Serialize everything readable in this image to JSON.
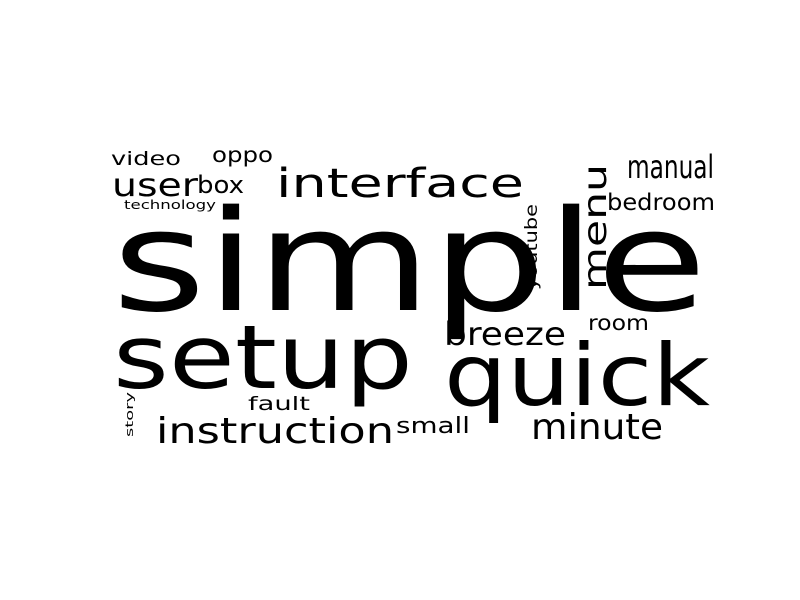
{
  "wordcloud": {
    "background": "#ffffff",
    "color": "#000000",
    "words": [
      {
        "text": "simple",
        "weight": 100
      },
      {
        "text": "setup",
        "weight": 60
      },
      {
        "text": "quick",
        "weight": 58
      },
      {
        "text": "interface",
        "weight": 28
      },
      {
        "text": "instruction",
        "weight": 24
      },
      {
        "text": "minute",
        "weight": 22
      },
      {
        "text": "manual",
        "weight": 22
      },
      {
        "text": "menu",
        "weight": 22
      },
      {
        "text": "breeze",
        "weight": 22
      },
      {
        "text": "user",
        "weight": 20
      },
      {
        "text": "box",
        "weight": 16
      },
      {
        "text": "bedroom",
        "weight": 16
      },
      {
        "text": "small",
        "weight": 15
      },
      {
        "text": "room",
        "weight": 14
      },
      {
        "text": "oppo",
        "weight": 14
      },
      {
        "text": "video",
        "weight": 13
      },
      {
        "text": "fault",
        "weight": 13
      },
      {
        "text": "youtube",
        "weight": 12
      },
      {
        "text": "technology",
        "weight": 9
      },
      {
        "text": "story",
        "weight": 8
      }
    ]
  }
}
